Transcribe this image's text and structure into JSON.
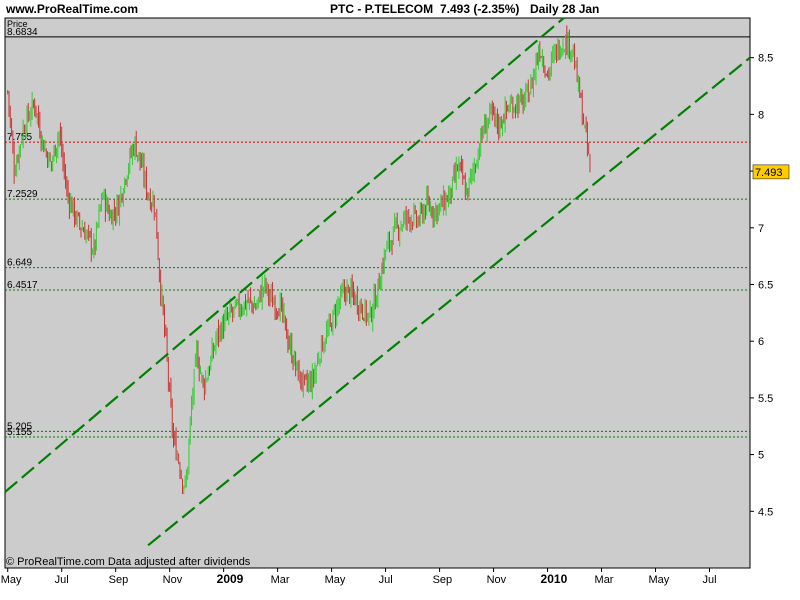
{
  "header": {
    "site": "www.ProRealTime.com",
    "ticker": "PTC - P.TELECOM",
    "price_change": "7.493 (-2.35%)",
    "period": "Daily  28 Jan"
  },
  "footer": {
    "copyright": "© ProRealTime.com  Data adjusted after dividends"
  },
  "colors": {
    "plot_bg": "#cccccc",
    "up": "#33cc33",
    "down": "#cc3333",
    "trend": "#008000",
    "support": "#008000",
    "resistance": "#cc0000",
    "last_price_bg": "#ffcc00"
  },
  "chart_data": {
    "type": "candlestick",
    "title": "PTC - P.TELECOM",
    "ylabel": "Price",
    "ylim": [
      4.0,
      8.85
    ],
    "y_ticks": [
      4.5,
      5,
      5.5,
      6,
      6.5,
      7,
      7.5,
      8,
      8.5
    ],
    "y_tick_labels": [
      "4.5",
      "5",
      "5.5",
      "6",
      "6.5",
      "7",
      "7.5",
      "8",
      "8.5"
    ],
    "x_ticks": [
      {
        "label": "May",
        "month": 0,
        "bold": false
      },
      {
        "label": "Jul",
        "month": 2,
        "bold": false
      },
      {
        "label": "Sep",
        "month": 4,
        "bold": false
      },
      {
        "label": "Nov",
        "month": 6,
        "bold": false
      },
      {
        "label": "2009",
        "month": 8,
        "bold": true
      },
      {
        "label": "Mar",
        "month": 10,
        "bold": false
      },
      {
        "label": "May",
        "month": 12,
        "bold": false
      },
      {
        "label": "Jul",
        "month": 14,
        "bold": false
      },
      {
        "label": "Sep",
        "month": 16,
        "bold": false
      },
      {
        "label": "Nov",
        "month": 18,
        "bold": false
      },
      {
        "label": "2010",
        "month": 20,
        "bold": true
      },
      {
        "label": "Mar",
        "month": 22,
        "bold": false
      },
      {
        "label": "May",
        "month": 24,
        "bold": false
      },
      {
        "label": "Jul",
        "month": 26,
        "bold": false
      }
    ],
    "x_range_months": [
      -0.1,
      27.5
    ],
    "last_price": 7.493,
    "last_price_label": "7.493",
    "horizontal_levels": [
      {
        "value": 8.6834,
        "label": "8.6834",
        "color": "#000000",
        "style": "solid"
      },
      {
        "value": 7.755,
        "label": "7.755",
        "color": "#cc0000",
        "style": "dotted"
      },
      {
        "value": 7.2529,
        "label": "7.2529",
        "color": "#008000",
        "style": "dotted"
      },
      {
        "value": 6.649,
        "label": "6.649",
        "color": "#008000",
        "style": "dotted"
      },
      {
        "value": 6.4517,
        "label": "6.4517",
        "color": "#008000",
        "style": "dotted"
      },
      {
        "value": 5.205,
        "label": "5.205",
        "color": "#008000",
        "style": "dotted"
      },
      {
        "value": 5.155,
        "label": "5.155",
        "color": "#008000",
        "style": "dotted"
      }
    ],
    "trend_lines": [
      {
        "from": [
          -0.1,
          4.67
        ],
        "to": [
          20.6,
          8.85
        ]
      },
      {
        "from": [
          5.2,
          4.2
        ],
        "to": [
          27.5,
          8.5
        ]
      }
    ],
    "close_path": [
      [
        0.0,
        8.2
      ],
      [
        0.25,
        7.5
      ],
      [
        0.6,
        7.9
      ],
      [
        1.0,
        8.1
      ],
      [
        1.3,
        7.75
      ],
      [
        1.6,
        7.55
      ],
      [
        1.9,
        7.85
      ],
      [
        2.2,
        7.3
      ],
      [
        2.6,
        7.05
      ],
      [
        2.9,
        6.95
      ],
      [
        3.2,
        6.8
      ],
      [
        3.5,
        7.3
      ],
      [
        3.8,
        7.1
      ],
      [
        4.1,
        7.2
      ],
      [
        4.4,
        7.5
      ],
      [
        4.7,
        7.75
      ],
      [
        4.95,
        7.55
      ],
      [
        5.2,
        7.3
      ],
      [
        5.45,
        7.2
      ],
      [
        5.65,
        6.5
      ],
      [
        5.85,
        6.0
      ],
      [
        6.0,
        5.5
      ],
      [
        6.15,
        5.1
      ],
      [
        6.3,
        5.0
      ],
      [
        6.45,
        4.8
      ],
      [
        6.6,
        4.7
      ],
      [
        6.8,
        5.4
      ],
      [
        7.0,
        5.9
      ],
      [
        7.25,
        5.6
      ],
      [
        7.5,
        5.8
      ],
      [
        7.75,
        6.05
      ],
      [
        8.0,
        6.15
      ],
      [
        8.3,
        6.25
      ],
      [
        8.6,
        6.3
      ],
      [
        8.9,
        6.35
      ],
      [
        9.2,
        6.3
      ],
      [
        9.5,
        6.5
      ],
      [
        9.8,
        6.35
      ],
      [
        10.1,
        6.3
      ],
      [
        10.4,
        6.0
      ],
      [
        10.7,
        5.75
      ],
      [
        11.0,
        5.6
      ],
      [
        11.3,
        5.65
      ],
      [
        11.6,
        5.95
      ],
      [
        11.9,
        6.1
      ],
      [
        12.2,
        6.3
      ],
      [
        12.5,
        6.45
      ],
      [
        12.8,
        6.4
      ],
      [
        13.1,
        6.3
      ],
      [
        13.4,
        6.2
      ],
      [
        13.7,
        6.45
      ],
      [
        14.0,
        6.8
      ],
      [
        14.3,
        6.95
      ],
      [
        14.6,
        7.05
      ],
      [
        14.9,
        7.1
      ],
      [
        15.2,
        7.05
      ],
      [
        15.5,
        7.2
      ],
      [
        15.8,
        7.15
      ],
      [
        16.1,
        7.2
      ],
      [
        16.4,
        7.3
      ],
      [
        16.7,
        7.55
      ],
      [
        17.0,
        7.3
      ],
      [
        17.3,
        7.55
      ],
      [
        17.6,
        7.85
      ],
      [
        17.9,
        8.0
      ],
      [
        18.2,
        7.9
      ],
      [
        18.5,
        8.05
      ],
      [
        18.8,
        8.1
      ],
      [
        19.1,
        8.1
      ],
      [
        19.4,
        8.25
      ],
      [
        19.7,
        8.6
      ],
      [
        20.0,
        8.35
      ],
      [
        20.3,
        8.55
      ],
      [
        20.6,
        8.65
      ],
      [
        20.9,
        8.6
      ],
      [
        21.2,
        8.15
      ],
      [
        21.45,
        7.75
      ],
      [
        21.6,
        7.493
      ]
    ]
  }
}
